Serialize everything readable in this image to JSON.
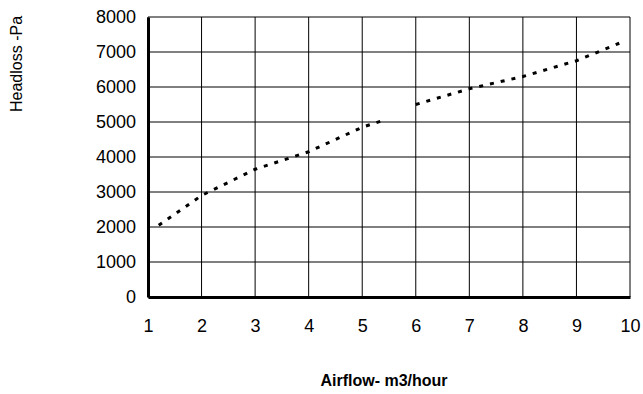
{
  "chart_data": {
    "type": "line",
    "x_label": "Airflow- m3/hour",
    "y_label": "Headloss -Pa",
    "x": [
      1.2,
      2,
      3,
      4,
      5,
      5.4,
      5.8,
      6,
      7,
      8,
      9,
      9.8
    ],
    "values": [
      2050,
      2900,
      3650,
      4150,
      4850,
      5050,
      null,
      5500,
      5950,
      6300,
      6750,
      7250
    ],
    "color": "#000000",
    "line_style": "dotted",
    "xlim": [
      1,
      10
    ],
    "xticks": [
      1,
      2,
      3,
      4,
      5,
      6,
      7,
      8,
      9,
      10
    ],
    "ylim": [
      0,
      8000
    ],
    "yticks": [
      0,
      1000,
      2000,
      3000,
      4000,
      5000,
      6000,
      7000,
      8000
    ],
    "grid": true
  }
}
